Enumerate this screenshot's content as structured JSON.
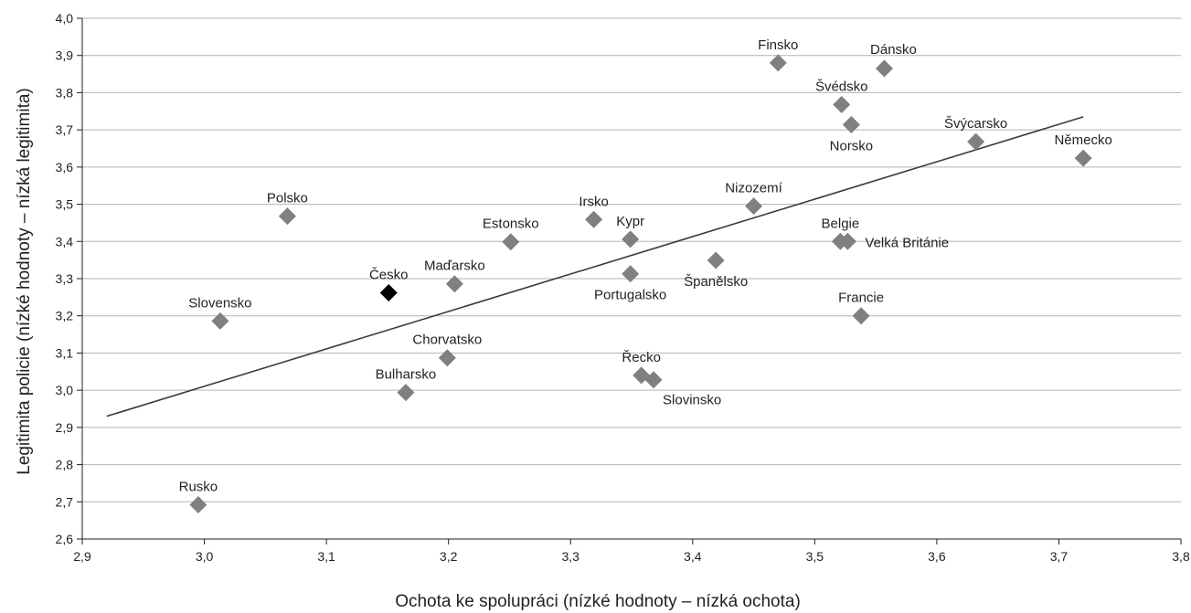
{
  "chart_data": {
    "type": "scatter",
    "title": "",
    "xlabel": "Ochota ke spolupráci (nízké hodnoty – nízká ochota)",
    "ylabel": "Legitimita policie (nízké hodnoty – nízká legitimita)",
    "xlim": [
      2.9,
      3.8
    ],
    "ylim": [
      2.6,
      4.0
    ],
    "x_ticks": [
      "2,9",
      "3,0",
      "3,1",
      "3,2",
      "3,3",
      "3,4",
      "3,5",
      "3,6",
      "3,7",
      "3,8"
    ],
    "y_ticks": [
      "2,6",
      "2,7",
      "2,8",
      "2,9",
      "3,0",
      "3,1",
      "3,2",
      "3,3",
      "3,4",
      "3,5",
      "3,6",
      "3,7",
      "3,8",
      "3,9",
      "4,0"
    ],
    "grid": "horizontal",
    "marker": "diamond",
    "colors": {
      "default": "#808080",
      "highlight": "#000000",
      "trendline": "#3a3a3a",
      "grid": "#b3b3b3"
    },
    "trendline": {
      "x": [
        2.92,
        3.72
      ],
      "y": [
        2.93,
        3.735
      ]
    },
    "points": [
      {
        "label": "Finsko",
        "x": 3.47,
        "y": 3.88,
        "label_pos": "above"
      },
      {
        "label": "Dánsko",
        "x": 3.557,
        "y": 3.865,
        "label_pos": "above-right"
      },
      {
        "label": "Švédsko",
        "x": 3.522,
        "y": 3.768,
        "label_pos": "above"
      },
      {
        "label": "Norsko",
        "x": 3.53,
        "y": 3.714,
        "label_pos": "below"
      },
      {
        "label": "Švýcarsko",
        "x": 3.632,
        "y": 3.668,
        "label_pos": "above"
      },
      {
        "label": "Německo",
        "x": 3.72,
        "y": 3.624,
        "label_pos": "above"
      },
      {
        "label": "Nizozemí",
        "x": 3.45,
        "y": 3.495,
        "label_pos": "above"
      },
      {
        "label": "Polsko",
        "x": 3.068,
        "y": 3.468,
        "label_pos": "above"
      },
      {
        "label": "Irsko",
        "x": 3.319,
        "y": 3.459,
        "label_pos": "above"
      },
      {
        "label": "Kypr",
        "x": 3.349,
        "y": 3.406,
        "label_pos": "above"
      },
      {
        "label": "Estonsko",
        "x": 3.251,
        "y": 3.399,
        "label_pos": "above"
      },
      {
        "label": "Belgie",
        "x": 3.521,
        "y": 3.4,
        "label_pos": "above"
      },
      {
        "label": "Velká Británie",
        "x": 3.527,
        "y": 3.4,
        "label_pos": "right"
      },
      {
        "label": "Španělsko",
        "x": 3.419,
        "y": 3.349,
        "label_pos": "below"
      },
      {
        "label": "Portugalsko",
        "x": 3.349,
        "y": 3.313,
        "label_pos": "below"
      },
      {
        "label": "Maďarsko",
        "x": 3.205,
        "y": 3.286,
        "label_pos": "above"
      },
      {
        "label": "Česko",
        "x": 3.151,
        "y": 3.262,
        "label_pos": "above",
        "highlight": true
      },
      {
        "label": "Slovensko",
        "x": 3.013,
        "y": 3.186,
        "label_pos": "above"
      },
      {
        "label": "Francie",
        "x": 3.538,
        "y": 3.2,
        "label_pos": "above"
      },
      {
        "label": "Chorvatsko",
        "x": 3.199,
        "y": 3.087,
        "label_pos": "above"
      },
      {
        "label": "Řecko",
        "x": 3.358,
        "y": 3.04,
        "label_pos": "above"
      },
      {
        "label": "Slovinsko",
        "x": 3.368,
        "y": 3.028,
        "label_pos": "below-right"
      },
      {
        "label": "Bulharsko",
        "x": 3.165,
        "y": 2.994,
        "label_pos": "above"
      },
      {
        "label": "Rusko",
        "x": 2.995,
        "y": 2.692,
        "label_pos": "above"
      }
    ]
  }
}
